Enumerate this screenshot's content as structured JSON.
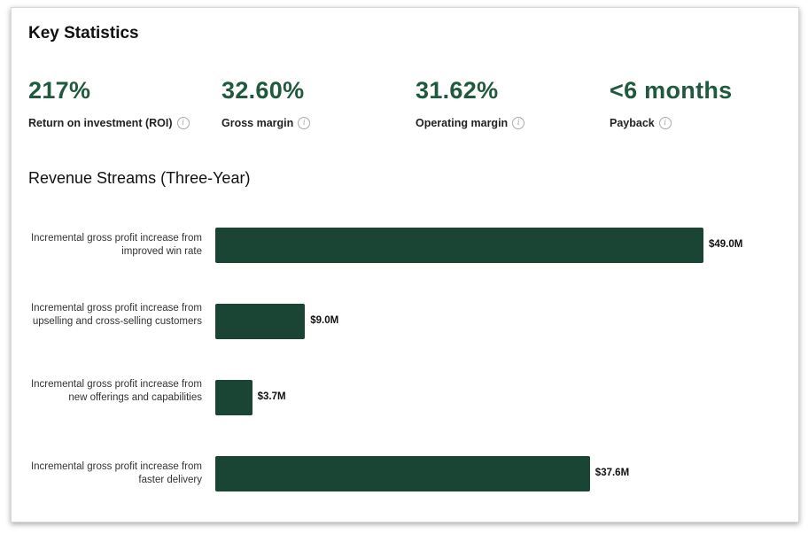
{
  "title": "Key Statistics",
  "stats": [
    {
      "value": "217%",
      "label": "Return on investment (ROI)"
    },
    {
      "value": "32.60%",
      "label": "Gross margin"
    },
    {
      "value": "31.62%",
      "label": "Operating margin"
    },
    {
      "value": "<6 months",
      "label": "Payback"
    }
  ],
  "info_icon": "i",
  "colors": {
    "accent": "#1f5a3e",
    "bar": "#1a4535"
  },
  "chart_data": {
    "type": "bar",
    "orientation": "horizontal",
    "title": "Revenue Streams (Three-Year)",
    "categories": [
      "Incremental gross profit increase from improved win rate",
      "Incremental gross profit increase from upselling and cross-selling customers",
      "Incremental gross profit increase from new offerings and capabilities",
      "Incremental gross profit increase from faster delivery"
    ],
    "values": [
      49.0,
      9.0,
      3.7,
      37.6
    ],
    "data_labels": [
      "$49.0M",
      "$9.0M",
      "$3.7M",
      "$37.6M"
    ],
    "unit": "$M",
    "grid": false
  }
}
